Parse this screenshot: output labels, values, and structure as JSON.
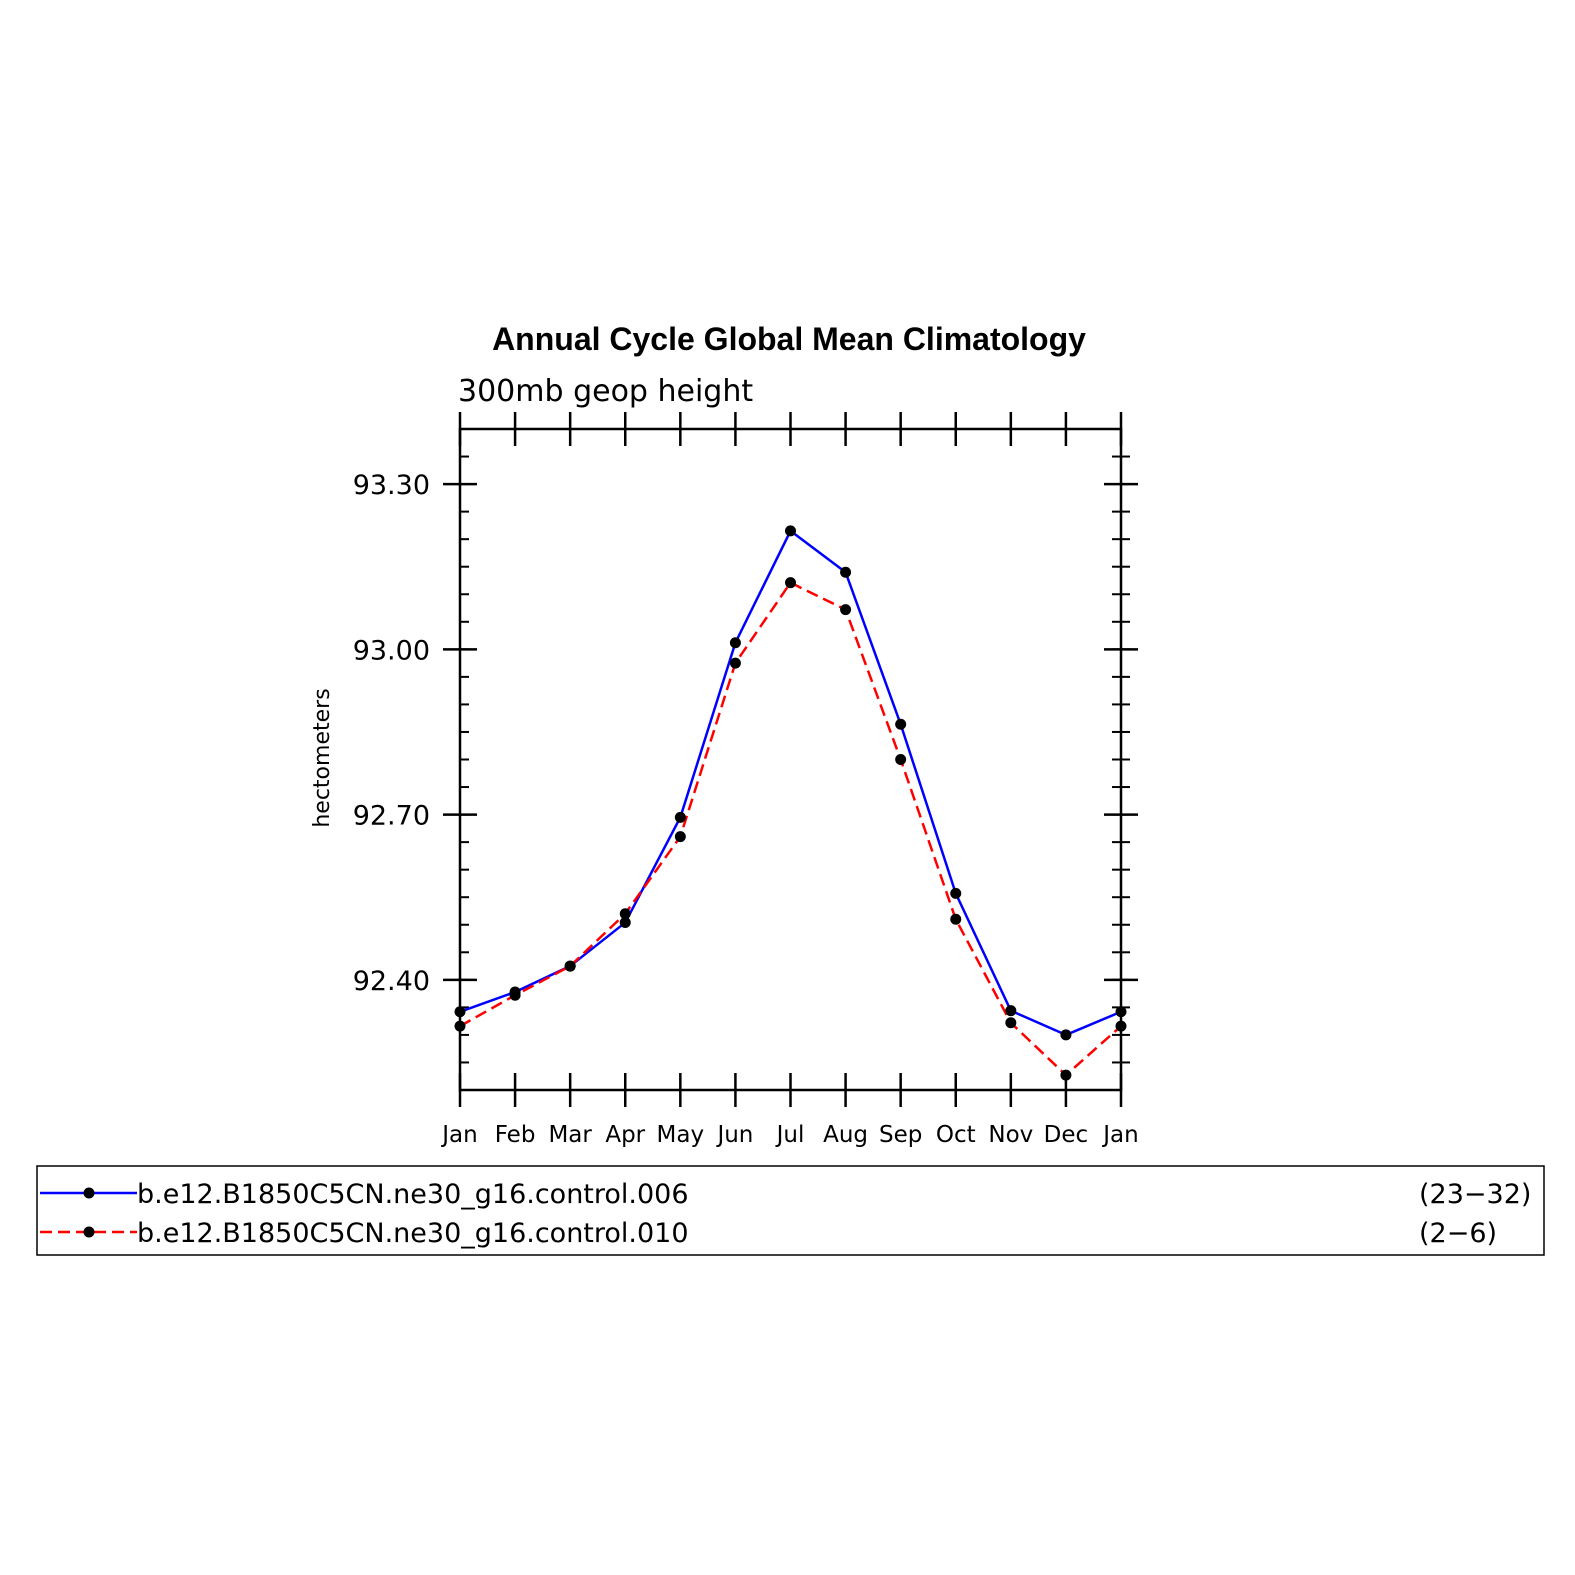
{
  "chart_data": {
    "type": "line",
    "title": "Annual Cycle Global Mean Climatology",
    "subtitle": "300mb geop height",
    "xlabel": "",
    "ylabel": "hectometers",
    "categories": [
      "Jan",
      "Feb",
      "Mar",
      "Apr",
      "May",
      "Jun",
      "Jul",
      "Aug",
      "Sep",
      "Oct",
      "Nov",
      "Dec",
      "Jan"
    ],
    "ylim": [
      92.2,
      93.4
    ],
    "yticks": [
      92.4,
      92.7,
      93.0,
      93.3
    ],
    "ytick_labels": [
      "92.40",
      "92.70",
      "93.00",
      "93.30"
    ],
    "grid": false,
    "legend_position": "bottom",
    "series": [
      {
        "name": "b.e12.B1850C5CN.ne30_g16.control.006",
        "years": "(23−32)",
        "color": "#0000ff",
        "dash": "solid",
        "values": [
          92.342,
          92.378,
          92.425,
          92.504,
          92.695,
          93.012,
          93.215,
          93.14,
          92.864,
          92.557,
          92.344,
          92.3,
          92.342
        ]
      },
      {
        "name": "b.e12.B1850C5CN.ne30_g16.control.010",
        "years": "(2−6)",
        "color": "#ff0000",
        "dash": "dashed",
        "values": [
          92.316,
          92.372,
          92.425,
          92.52,
          92.66,
          92.975,
          93.121,
          93.072,
          92.8,
          92.51,
          92.322,
          92.227,
          92.316
        ]
      }
    ],
    "marker_color": "#000000"
  }
}
